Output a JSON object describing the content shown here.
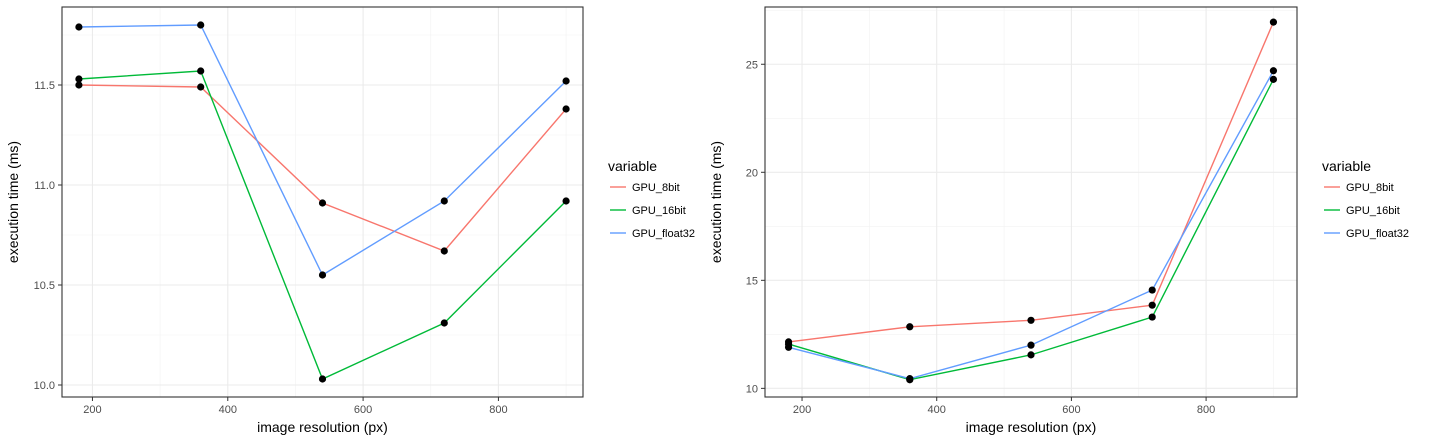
{
  "chart_data": [
    {
      "type": "line",
      "xlabel": "image resolution (px)",
      "ylabel": "execution time (ms)",
      "xlim": [
        155,
        925
      ],
      "ylim": [
        9.94,
        11.89
      ],
      "xticks": [
        200,
        400,
        600,
        800
      ],
      "yticks": [
        10.0,
        10.5,
        11.0,
        11.5
      ],
      "ytick_labels": [
        "10.0",
        "10.5",
        "11.0",
        "11.5"
      ],
      "x": [
        180,
        360,
        540,
        720,
        900
      ],
      "grid": true,
      "legend": {
        "title": "variable",
        "position": "right"
      },
      "series": [
        {
          "name": "GPU_8bit",
          "color": "#F8766D",
          "values": [
            11.5,
            11.49,
            10.91,
            10.67,
            11.38
          ]
        },
        {
          "name": "GPU_16bit",
          "color": "#00BA38",
          "values": [
            11.53,
            11.57,
            10.03,
            10.31,
            10.92
          ]
        },
        {
          "name": "GPU_float32",
          "color": "#619CFF",
          "values": [
            11.79,
            11.8,
            10.55,
            10.92,
            11.52
          ]
        }
      ]
    },
    {
      "type": "line",
      "xlabel": "image resolution (px)",
      "ylabel": "execution time (ms)",
      "xlim": [
        145,
        935
      ],
      "ylim": [
        9.6,
        27.65
      ],
      "xticks": [
        200,
        400,
        600,
        800
      ],
      "yticks": [
        10,
        15,
        20,
        25
      ],
      "ytick_labels": [
        "10",
        "15",
        "20",
        "25"
      ],
      "x": [
        180,
        360,
        540,
        720,
        900
      ],
      "grid": true,
      "legend": {
        "title": "variable",
        "position": "right"
      },
      "series": [
        {
          "name": "GPU_8bit",
          "color": "#F8766D",
          "values": [
            12.15,
            12.85,
            13.15,
            13.85,
            26.95
          ]
        },
        {
          "name": "GPU_16bit",
          "color": "#00BA38",
          "values": [
            12.05,
            10.4,
            11.55,
            13.3,
            24.3
          ]
        },
        {
          "name": "GPU_float32",
          "color": "#619CFF",
          "values": [
            11.9,
            10.45,
            12.0,
            14.55,
            24.7
          ]
        }
      ]
    }
  ]
}
